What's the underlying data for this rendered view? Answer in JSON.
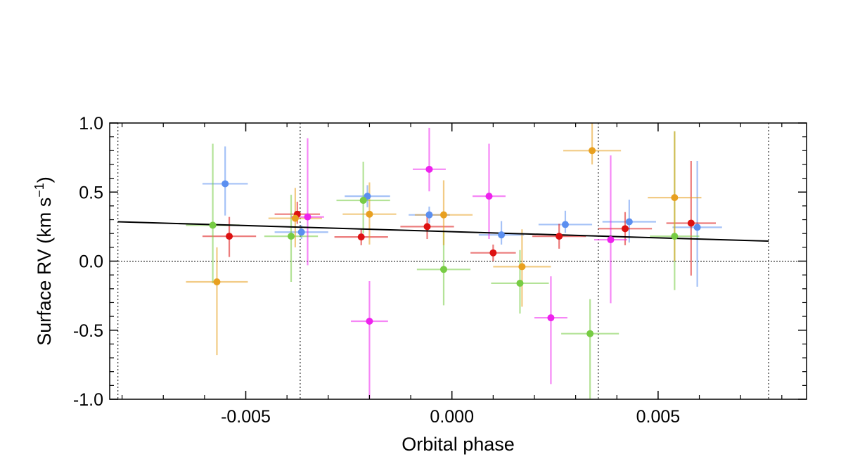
{
  "chart_data": {
    "type": "scatter",
    "xlabel": "Orbital phase",
    "ylabel": "Surface RV (km s",
    "ylabel_sup": "−1",
    "ylabel_close": ")",
    "xlim": [
      -0.0083,
      0.0086
    ],
    "ylim": [
      -1.0,
      1.0
    ],
    "xticks": [
      -0.005,
      0.0,
      0.005
    ],
    "xtick_labels": [
      "-0.005",
      "0.000",
      "0.005"
    ],
    "yticks": [
      -1.0,
      -0.5,
      0.0,
      0.5,
      1.0
    ],
    "ytick_labels": [
      "-1.0",
      "-0.5",
      "0.0",
      "0.5",
      "1.0"
    ],
    "hline": 0.0,
    "vlines": [
      -0.0081,
      -0.00368,
      0.00355,
      0.00768
    ],
    "fit_line": {
      "x": [
        -0.0081,
        0.00768
      ],
      "y": [
        0.285,
        0.145
      ],
      "color": "#000000"
    },
    "series": [
      {
        "name": "blue",
        "color": "#5b8ff0",
        "points": [
          {
            "x": -0.0055,
            "y": 0.56,
            "xerr": 0.00055,
            "yerr_up": 0.27,
            "yerr_down": 0.23
          },
          {
            "x": -0.00365,
            "y": 0.21,
            "xerr": 0.00065,
            "yerr_up": 0.05,
            "yerr_down": 0.05
          },
          {
            "x": -0.00205,
            "y": 0.47,
            "xerr": 0.00055,
            "yerr_up": 0.08,
            "yerr_down": 0.08
          },
          {
            "x": -0.00055,
            "y": 0.335,
            "xerr": 0.0005,
            "yerr_up": 0.06,
            "yerr_down": 0.06
          },
          {
            "x": 0.0012,
            "y": 0.19,
            "xerr": 0.00055,
            "yerr_up": 0.1,
            "yerr_down": 0.07
          },
          {
            "x": 0.00275,
            "y": 0.265,
            "xerr": 0.00065,
            "yerr_up": 0.1,
            "yerr_down": 0.06
          },
          {
            "x": 0.0043,
            "y": 0.285,
            "xerr": 0.00065,
            "yerr_up": 0.16,
            "yerr_down": 0.15
          },
          {
            "x": 0.00595,
            "y": 0.245,
            "xerr": 0.0006,
            "yerr_up": 0.48,
            "yerr_down": 0.43
          }
        ]
      },
      {
        "name": "red",
        "color": "#dd1111",
        "points": [
          {
            "x": -0.0054,
            "y": 0.18,
            "xerr": 0.00065,
            "yerr_up": 0.14,
            "yerr_down": 0.15
          },
          {
            "x": -0.00375,
            "y": 0.34,
            "xerr": 0.00055,
            "yerr_up": 0.09,
            "yerr_down": 0.07
          },
          {
            "x": -0.0022,
            "y": 0.175,
            "xerr": 0.00065,
            "yerr_up": 0.06,
            "yerr_down": 0.06
          },
          {
            "x": -0.0006,
            "y": 0.25,
            "xerr": 0.00065,
            "yerr_up": 0.09,
            "yerr_down": 0.09
          },
          {
            "x": 0.001,
            "y": 0.06,
            "xerr": 0.00055,
            "yerr_up": 0.06,
            "yerr_down": 0.06
          },
          {
            "x": 0.0026,
            "y": 0.18,
            "xerr": 0.00065,
            "yerr_up": 0.09,
            "yerr_down": 0.09
          },
          {
            "x": 0.0042,
            "y": 0.235,
            "xerr": 0.00065,
            "yerr_up": 0.12,
            "yerr_down": 0.12
          },
          {
            "x": 0.0058,
            "y": 0.275,
            "xerr": 0.0006,
            "yerr_up": 0.45,
            "yerr_down": 0.38
          }
        ]
      },
      {
        "name": "green",
        "color": "#77cc44",
        "points": [
          {
            "x": -0.0058,
            "y": 0.26,
            "xerr": 0.00065,
            "yerr_up": 0.59,
            "yerr_down": 0.42
          },
          {
            "x": -0.0039,
            "y": 0.18,
            "xerr": 0.00065,
            "yerr_up": 0.3,
            "yerr_down": 0.33
          },
          {
            "x": -0.00215,
            "y": 0.44,
            "xerr": 0.00065,
            "yerr_up": 0.28,
            "yerr_down": 0.24
          },
          {
            "x": -0.0002,
            "y": -0.06,
            "xerr": 0.00065,
            "yerr_up": 0.28,
            "yerr_down": 0.26
          },
          {
            "x": 0.00165,
            "y": -0.16,
            "xerr": 0.0007,
            "yerr_up": 0.24,
            "yerr_down": 0.22
          },
          {
            "x": 0.00335,
            "y": -0.525,
            "xerr": 0.0007,
            "yerr_up": 0.25,
            "yerr_down": 0.47
          },
          {
            "x": 0.0054,
            "y": 0.18,
            "xerr": 0.0006,
            "yerr_up": 0.76,
            "yerr_down": 0.39
          }
        ]
      },
      {
        "name": "orange",
        "color": "#e8a020",
        "points": [
          {
            "x": -0.0057,
            "y": -0.15,
            "xerr": 0.00075,
            "yerr_up": 0.25,
            "yerr_down": 0.53
          },
          {
            "x": -0.0038,
            "y": 0.31,
            "xerr": 0.00065,
            "yerr_up": 0.22,
            "yerr_down": 0.21
          },
          {
            "x": -0.002,
            "y": 0.34,
            "xerr": 0.00065,
            "yerr_up": 0.23,
            "yerr_down": 0.22
          },
          {
            "x": -0.0002,
            "y": 0.335,
            "xerr": 0.0007,
            "yerr_up": 0.25,
            "yerr_down": 0.22
          },
          {
            "x": 0.0017,
            "y": -0.04,
            "xerr": 0.0007,
            "yerr_up": 0.27,
            "yerr_down": 0.29
          },
          {
            "x": 0.0034,
            "y": 0.8,
            "xerr": 0.0007,
            "yerr_up": 0.2,
            "yerr_down": 0.1
          },
          {
            "x": 0.0054,
            "y": 0.46,
            "xerr": 0.00065,
            "yerr_up": 0.48,
            "yerr_down": 0.46
          }
        ]
      },
      {
        "name": "magenta",
        "color": "#ee22ee",
        "points": [
          {
            "x": -0.0035,
            "y": 0.32,
            "xerr": 0.0004,
            "yerr_up": 0.57,
            "yerr_down": 0.35
          },
          {
            "x": -0.002,
            "y": -0.435,
            "xerr": 0.00045,
            "yerr_up": 0.29,
            "yerr_down": 0.56
          },
          {
            "x": -0.00055,
            "y": 0.665,
            "xerr": 0.0004,
            "yerr_up": 0.3,
            "yerr_down": 0.16
          },
          {
            "x": 0.0009,
            "y": 0.47,
            "xerr": 0.0004,
            "yerr_up": 0.38,
            "yerr_down": 0.31
          },
          {
            "x": 0.0024,
            "y": -0.41,
            "xerr": 0.0004,
            "yerr_up": 0.3,
            "yerr_down": 0.48
          },
          {
            "x": 0.00385,
            "y": 0.155,
            "xerr": 0.0004,
            "yerr_up": 0.61,
            "yerr_down": 0.46
          }
        ]
      }
    ]
  }
}
